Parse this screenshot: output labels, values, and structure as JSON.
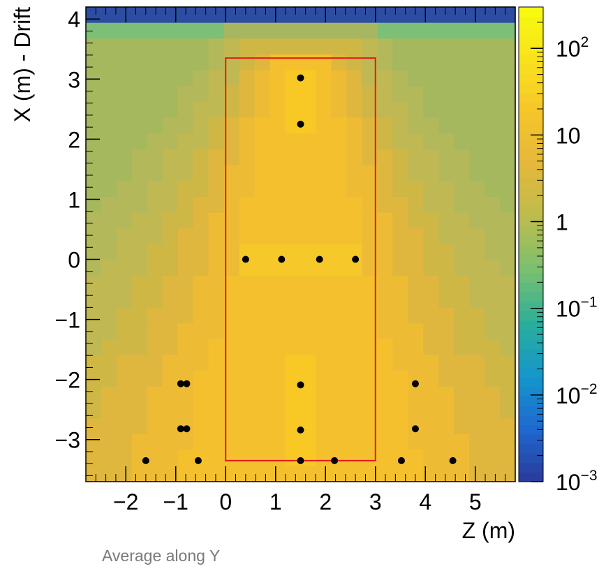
{
  "chart_data": {
    "type": "heatmap",
    "xlabel": "Z (m)",
    "ylabel": "X (m) - Drift",
    "xlim": [
      -2.8,
      5.8
    ],
    "ylim": [
      -3.7,
      4.2
    ],
    "x_ticks": [
      -2,
      -1,
      0,
      1,
      2,
      3,
      4,
      5
    ],
    "y_ticks": [
      -3,
      -2,
      -1,
      0,
      1,
      2,
      3,
      4
    ],
    "x_tick_labels": [
      "−2",
      "−1",
      "0",
      "1",
      "2",
      "3",
      "4",
      "5"
    ],
    "y_tick_labels": [
      "−3",
      "−2",
      "−1",
      "0",
      "1",
      "2",
      "3",
      "4"
    ],
    "colorbar": {
      "scale": "log",
      "range": [
        0.001,
        300
      ],
      "ticks": [
        0.001,
        0.01,
        0.1,
        1,
        10,
        100
      ],
      "labels": [
        {
          "base": "10",
          "exp": "−3"
        },
        {
          "base": "10",
          "exp": "−2"
        },
        {
          "base": "10",
          "exp": "−1"
        },
        {
          "base": "1",
          "exp": ""
        },
        {
          "base": "10",
          "exp": ""
        },
        {
          "base": "10",
          "exp": "2"
        }
      ],
      "colors": [
        "#2b3a9a",
        "#1f68d0",
        "#1496cc",
        "#2aae9a",
        "#78c070",
        "#bcbc4e",
        "#e3b83a",
        "#f5c52a",
        "#f9e21c",
        "#f8fb0e"
      ]
    },
    "grid": false,
    "region_box": {
      "z": [
        0,
        3
      ],
      "x": [
        -3.35,
        3.35
      ],
      "color": "#e4181c"
    },
    "points": [
      {
        "z": 1.5,
        "x": 3.02
      },
      {
        "z": 1.5,
        "x": 2.25
      },
      {
        "z": 0.4,
        "x": 0.0
      },
      {
        "z": 1.12,
        "x": 0.0
      },
      {
        "z": 1.88,
        "x": 0.0
      },
      {
        "z": 2.6,
        "x": 0.0
      },
      {
        "z": -0.9,
        "x": -2.07
      },
      {
        "z": -0.78,
        "x": -2.07
      },
      {
        "z": 1.5,
        "x": -2.09
      },
      {
        "z": 3.8,
        "x": -2.07
      },
      {
        "z": -0.9,
        "x": -2.82
      },
      {
        "z": -0.78,
        "x": -2.82
      },
      {
        "z": 1.5,
        "x": -2.84
      },
      {
        "z": 3.8,
        "x": -2.82
      },
      {
        "z": -1.6,
        "x": -3.35
      },
      {
        "z": -0.55,
        "x": -3.35
      },
      {
        "z": 1.5,
        "x": -3.35
      },
      {
        "z": 2.18,
        "x": -3.35
      },
      {
        "z": 3.52,
        "x": -3.35
      },
      {
        "z": 4.55,
        "x": -3.35
      }
    ],
    "heat_top_band": {
      "x_from": 3.85,
      "value": 0.001
    },
    "heat_second_band": {
      "x_from": 3.6,
      "value": 2
    }
  },
  "caption": "Average along Y"
}
